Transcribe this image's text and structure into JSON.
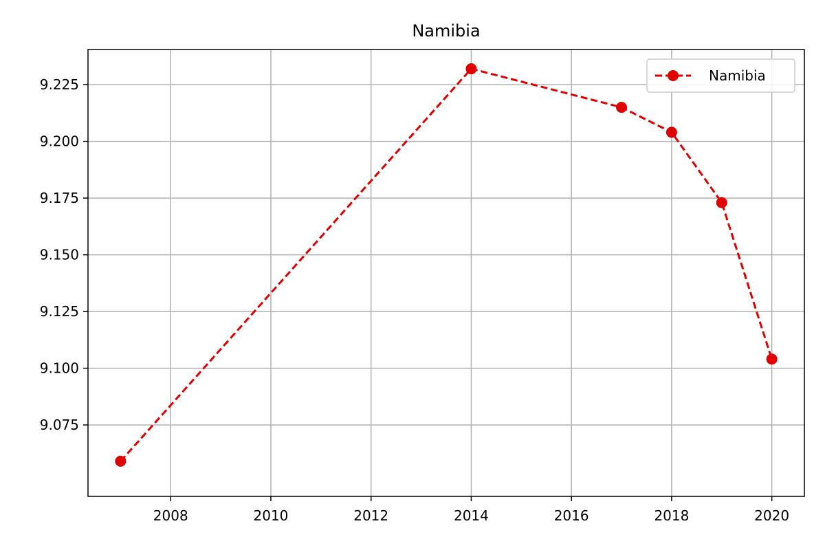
{
  "chart_data": {
    "type": "line",
    "title": "Namibia",
    "xlabel": "",
    "ylabel": "",
    "x": [
      2007,
      2014,
      2017,
      2018,
      2019,
      2020
    ],
    "series": [
      {
        "name": "Namibia",
        "values": [
          9.059,
          9.232,
          9.215,
          9.204,
          9.173,
          9.104
        ],
        "color": "#e00000",
        "line_style": "dashed",
        "marker": "circle"
      }
    ],
    "xlim": [
      2006.35,
      2020.65
    ],
    "ylim": [
      9.0435,
      9.2405
    ],
    "xticks": [
      2008,
      2010,
      2012,
      2014,
      2016,
      2018,
      2020
    ],
    "xtick_labels": [
      "2008",
      "2010",
      "2012",
      "2014",
      "2016",
      "2018",
      "2020"
    ],
    "yticks": [
      9.075,
      9.1,
      9.125,
      9.15,
      9.175,
      9.2,
      9.225
    ],
    "ytick_labels": [
      "9.075",
      "9.100",
      "9.125",
      "9.150",
      "9.175",
      "9.200",
      "9.225"
    ],
    "grid": true,
    "legend_position": "top-right"
  }
}
